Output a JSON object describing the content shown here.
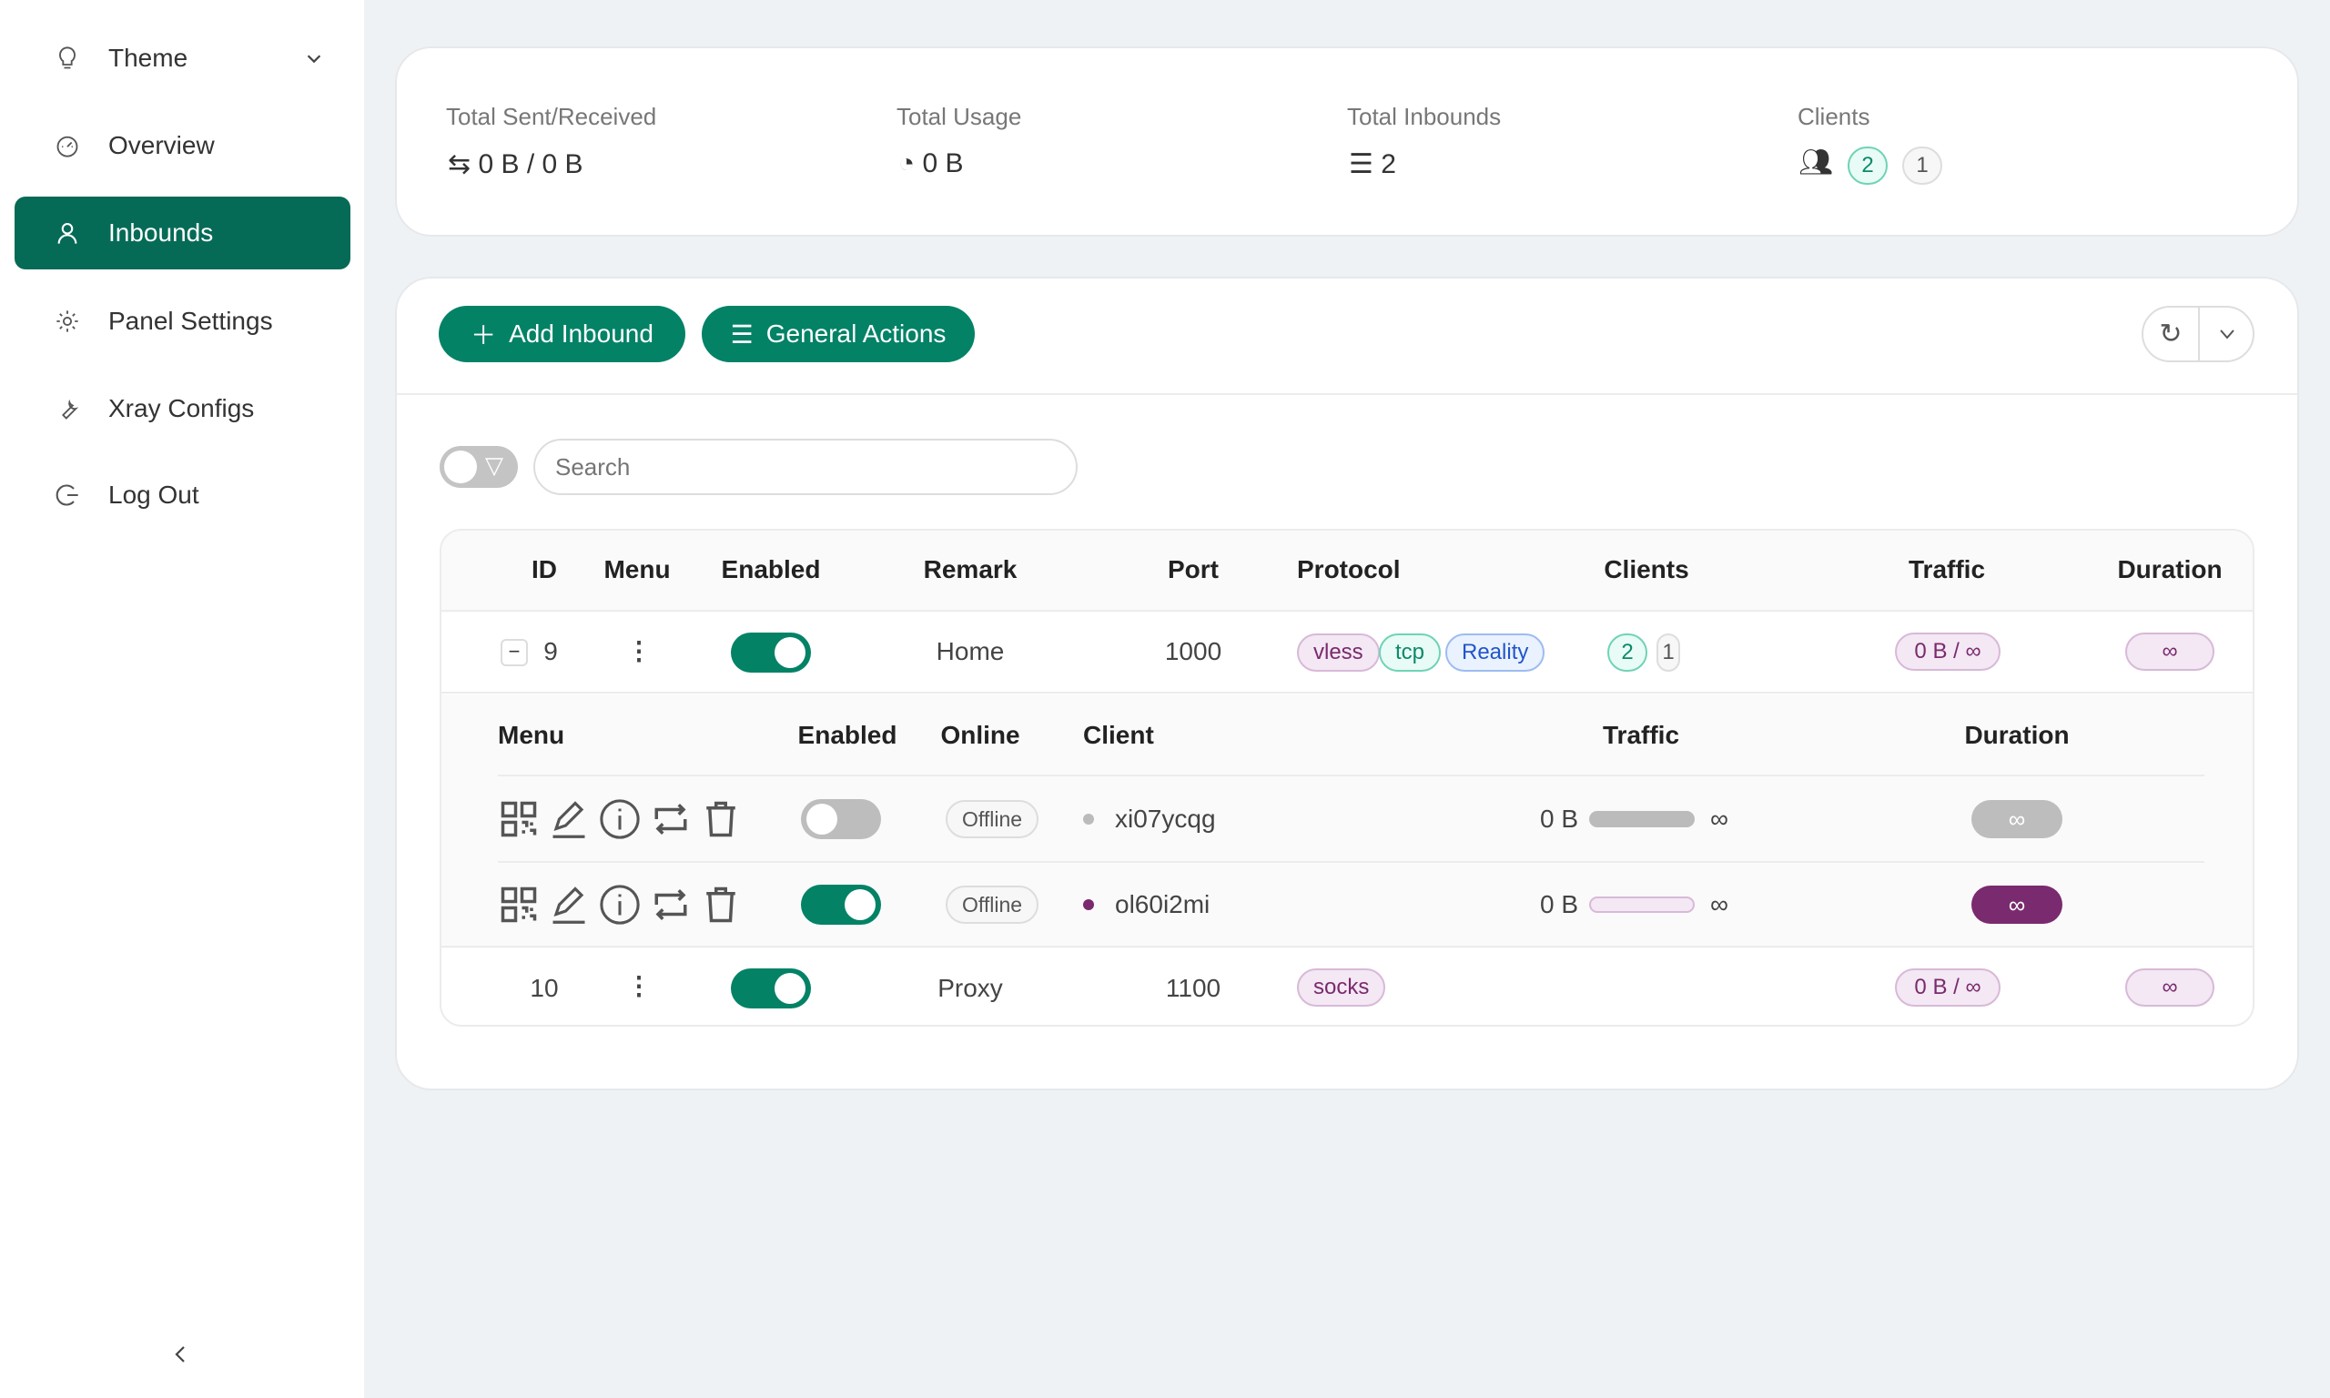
{
  "sidebar": {
    "items": [
      {
        "label": "Theme",
        "icon": "lightbulb-icon"
      },
      {
        "label": "Overview",
        "icon": "dashboard-icon"
      },
      {
        "label": "Inbounds",
        "icon": "user-icon",
        "active": true
      },
      {
        "label": "Panel Settings",
        "icon": "gear-icon"
      },
      {
        "label": "Xray Configs",
        "icon": "wrench-icon"
      },
      {
        "label": "Log Out",
        "icon": "logout-icon"
      }
    ]
  },
  "stats": {
    "sent_received": {
      "label": "Total Sent/Received",
      "value": "0 B / 0 B"
    },
    "usage": {
      "label": "Total Usage",
      "value": "0 B"
    },
    "inbounds": {
      "label": "Total Inbounds",
      "value": "2"
    },
    "clients": {
      "label": "Clients",
      "active": "2",
      "other": "1"
    }
  },
  "toolbar": {
    "add_label": "Add Inbound",
    "general_label": "General Actions",
    "search_placeholder": "Search"
  },
  "table": {
    "headers": [
      "ID",
      "Menu",
      "Enabled",
      "Remark",
      "Port",
      "Protocol",
      "Clients",
      "Traffic",
      "Duration"
    ],
    "rows": [
      {
        "id": "9",
        "enabled": true,
        "remark": "Home",
        "port": "1000",
        "protocol": [
          "vless",
          "tcp",
          "Reality"
        ],
        "clients_active": "2",
        "clients_other": "1",
        "traffic": "0 B / ∞",
        "duration": "∞"
      },
      {
        "id": "10",
        "enabled": true,
        "remark": "Proxy",
        "port": "1100",
        "protocol": [
          "socks"
        ],
        "traffic": "0 B / ∞",
        "duration": "∞"
      }
    ],
    "sub_headers": [
      "Menu",
      "Enabled",
      "Online",
      "Client",
      "Traffic",
      "Duration"
    ],
    "clients": [
      {
        "enabled": false,
        "online": "Offline",
        "name": "xi07ycqg",
        "traffic_used": "0 B",
        "traffic_limit": "∞",
        "duration": "∞",
        "progress": 0
      },
      {
        "enabled": true,
        "online": "Offline",
        "name": "ol60i2mi",
        "traffic_used": "0 B",
        "traffic_limit": "∞",
        "duration": "∞",
        "progress": 0
      }
    ]
  },
  "colors": {
    "accent": "#038266",
    "purple": "#7a2a6e"
  }
}
